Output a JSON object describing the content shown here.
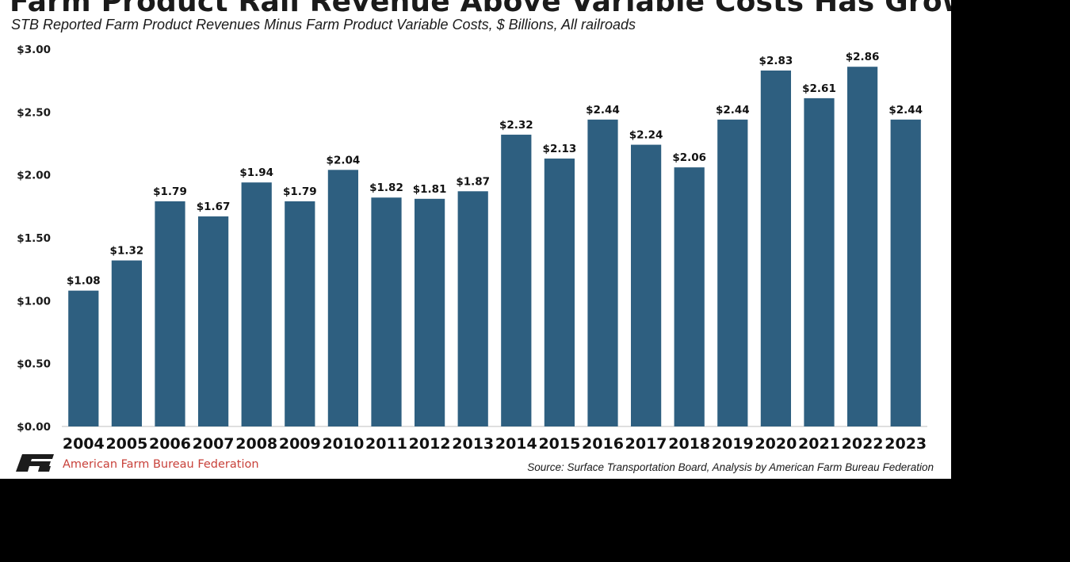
{
  "colors": {
    "bar": "#2e5f80",
    "axis": "#bfbfbf",
    "brand_red": "#c8413a",
    "page_bg": "#000000",
    "card_bg": "#ffffff"
  },
  "chart_data": {
    "type": "bar",
    "title": "Farm Product Rail Revenue Above Variable Costs Has Grown",
    "subtitle": "STB Reported Farm Product Revenues Minus Farm Product Variable Costs, $ Billions, All railroads",
    "categories": [
      "2004",
      "2005",
      "2006",
      "2007",
      "2008",
      "2009",
      "2010",
      "2011",
      "2012",
      "2013",
      "2014",
      "2015",
      "2016",
      "2017",
      "2018",
      "2019",
      "2020",
      "2021",
      "2022",
      "2023"
    ],
    "values": [
      1.08,
      1.32,
      1.79,
      1.67,
      1.94,
      1.79,
      2.04,
      1.82,
      1.81,
      1.87,
      2.32,
      2.13,
      2.44,
      2.24,
      2.06,
      2.44,
      2.83,
      2.61,
      2.86,
      2.44
    ],
    "value_labels": [
      "$1.08",
      "$1.32",
      "$1.79",
      "$1.67",
      "$1.94",
      "$1.79",
      "$2.04",
      "$1.82",
      "$1.81",
      "$1.87",
      "$2.32",
      "$2.13",
      "$2.44",
      "$2.24",
      "$2.06",
      "$2.44",
      "$2.83",
      "$2.61",
      "$2.86",
      "$2.44"
    ],
    "ylim": [
      0,
      3
    ],
    "yticks": [
      0,
      0.5,
      1,
      1.5,
      2,
      2.5,
      3
    ],
    "ytick_labels": [
      "$0.00",
      "$0.50",
      "$1.00",
      "$1.50",
      "$2.00",
      "$2.50",
      "$3.00"
    ],
    "xlabel": "",
    "ylabel": "",
    "grid": false,
    "legend": "none"
  },
  "footer": {
    "logo_icon": "afbf-logo-icon",
    "organization": "American Farm Bureau Federation",
    "source": "Source: Surface Transportation Board, Analysis by American Farm Bureau Federation"
  }
}
